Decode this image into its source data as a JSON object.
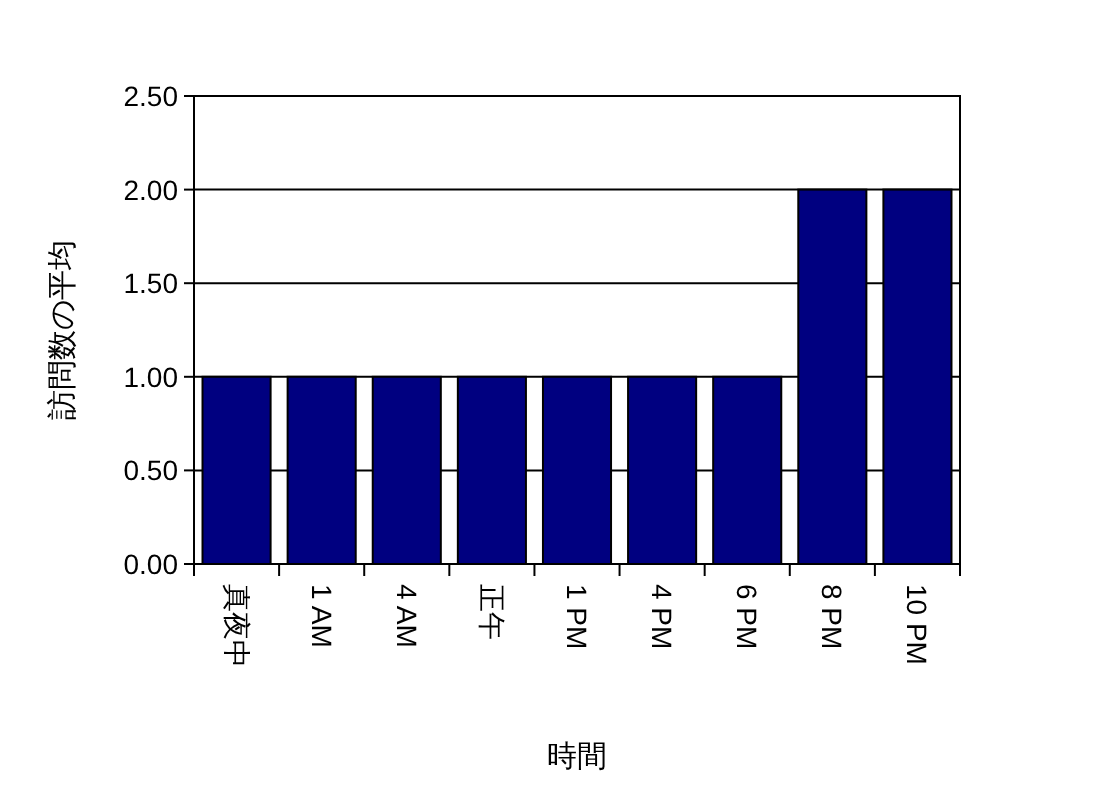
{
  "chart_data": {
    "type": "bar",
    "xlabel": "時間",
    "ylabel": "訪問数の平均",
    "categories": [
      "真夜中",
      "1 AM",
      "4 AM",
      "正午",
      "1 PM",
      "4 PM",
      "6 PM",
      "8 PM",
      "10 PM"
    ],
    "values": [
      1,
      1,
      1,
      1,
      1,
      1,
      1,
      2,
      2
    ],
    "color": "#000080",
    "ylim": [
      0,
      2.5
    ],
    "yticks": [
      {
        "value": 0,
        "label": "0.00"
      },
      {
        "value": 0.5,
        "label": "0.50"
      },
      {
        "value": 1,
        "label": "1.00"
      },
      {
        "value": 1.5,
        "label": "1.50"
      },
      {
        "value": 2,
        "label": "2.00"
      },
      {
        "value": 2.5,
        "label": "2.50"
      }
    ],
    "grid": "y"
  }
}
